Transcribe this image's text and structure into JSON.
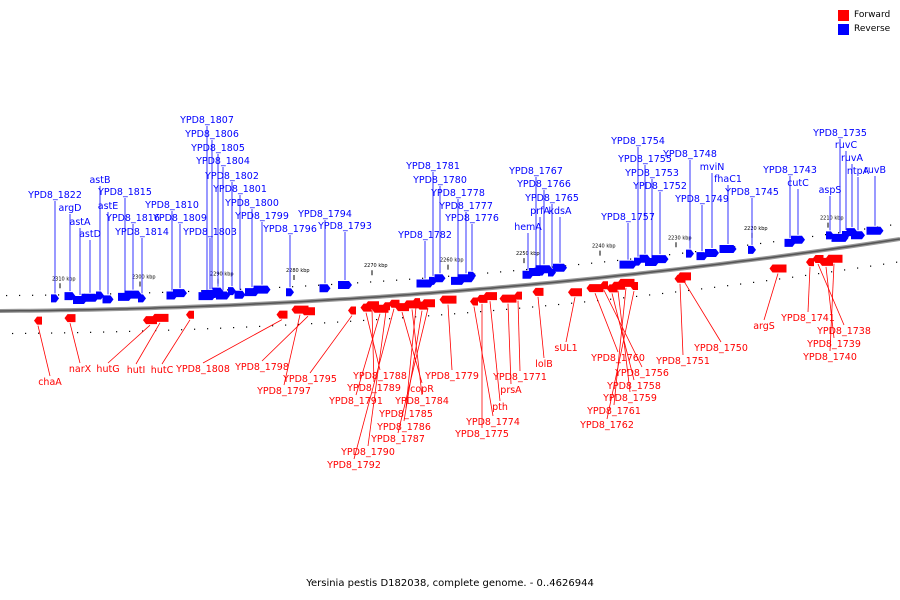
{
  "legend": {
    "forward_label": "Forward",
    "reverse_label": "Reverse",
    "forward_color": "#ff0000",
    "reverse_color": "#0000ff"
  },
  "caption": "Yersinia pestis D182038, complete genome. - 0..4626944",
  "scale_labels": [
    "2310 kbp",
    "2300 kbp",
    "2290 kbp",
    "2280 kbp",
    "2270 kbp",
    "2260 kbp",
    "2250 kbp",
    "2240 kbp",
    "2230 kbp",
    "2220 kbp",
    "2210 kbp"
  ],
  "reverse_genes": [
    "YPD8_1822",
    "argD",
    "astA",
    "astD",
    "astB",
    "astE",
    "YPD8_1815",
    "YPD8_1816",
    "YPD8_1814",
    "YPD8_1810",
    "YPD8_1809",
    "YPD8_1807",
    "YPD8_1806",
    "YPD8_1805",
    "YPD8_1804",
    "YPD8_1803",
    "YPD8_1802",
    "YPD8_1801",
    "YPD8_1800",
    "YPD8_1799",
    "YPD8_1796",
    "YPD8_1794",
    "YPD8_1793",
    "YPD8_1782",
    "YPD8_1781",
    "YPD8_1780",
    "YPD8_1778",
    "YPD8_1777",
    "YPD8_1776",
    "hemA",
    "YPD8_1767",
    "YPD8_1766",
    "YPD8_1765",
    "prfA",
    "kdsA",
    "YPD8_1757",
    "YPD8_1754",
    "YPD8_1755",
    "YPD8_1753",
    "YPD8_1752",
    "YPD8_1748",
    "YPD8_1749",
    "mviN",
    "fhaC1",
    "YPD8_1745",
    "YPD8_1743",
    "cutC",
    "YPD8_1735",
    "ruvC",
    "ruvA",
    "ntpA",
    "ruvB",
    "aspS"
  ],
  "forward_genes": [
    "chaA",
    "narX",
    "hutG",
    "hutI",
    "hutC",
    "YPD8_1808",
    "YPD8_1798",
    "YPD8_1797",
    "YPD8_1795",
    "YPD8_1788",
    "YPD8_1789",
    "YPD8_1791",
    "YPD8_1790",
    "YPD8_1792",
    "copR",
    "YPD8_1784",
    "YPD8_1785",
    "YPD8_1786",
    "YPD8_1787",
    "YPD8_1779",
    "YPD8_1774",
    "YPD8_1775",
    "pth",
    "prsA",
    "YPD8_1771",
    "lolB",
    "sUL1",
    "YPD8_1760",
    "YPD8_1756",
    "YPD8_1758",
    "YPD8_1759",
    "YPD8_1761",
    "YPD8_1762",
    "YPD8_1751",
    "YPD8_1750",
    "argS",
    "YPD8_1741",
    "YPD8_1738",
    "YPD8_1739",
    "YPD8_1740"
  ]
}
